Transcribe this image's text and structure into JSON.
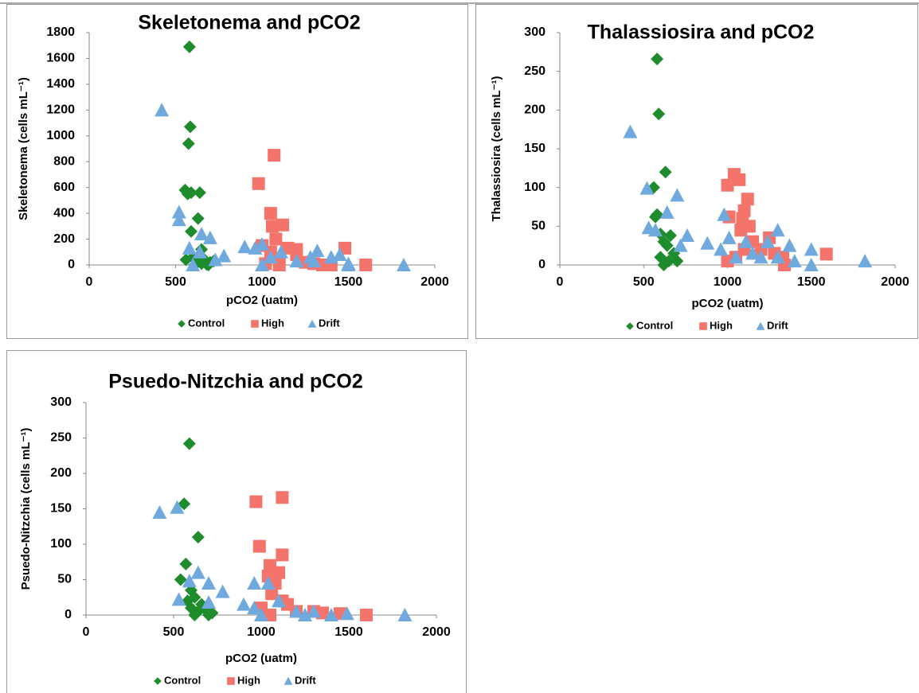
{
  "chart_data": [
    {
      "type": "scatter",
      "title": "Skeletonema and pCO2",
      "x_label": "pCO2 (uatm)",
      "y_label": "Skeletonema (cells mL⁻¹)",
      "xlim": [
        0,
        2000
      ],
      "xticks": [
        0,
        500,
        1000,
        1500,
        2000
      ],
      "ylim": [
        0,
        1800
      ],
      "yticks": [
        0,
        200,
        400,
        600,
        800,
        1000,
        1200,
        1400,
        1600,
        1800
      ],
      "legend": "bottom",
      "series": [
        {
          "name": "Control",
          "color": "#1e8c2c",
          "marker": "diamond",
          "x": [
            580,
            585,
            575,
            555,
            570,
            590,
            640,
            630,
            590,
            650,
            600,
            620,
            650,
            680,
            700,
            560,
            610,
            660,
            690,
            720
          ],
          "values": [
            1690,
            1070,
            940,
            580,
            550,
            560,
            560,
            360,
            260,
            120,
            60,
            30,
            10,
            5,
            20,
            40,
            0,
            50,
            0,
            30
          ]
        },
        {
          "name": "High",
          "color": "#f4736b",
          "marker": "square",
          "x": [
            980,
            1070,
            1050,
            1060,
            1120,
            1080,
            1000,
            1050,
            1100,
            1150,
            1200,
            1250,
            1300,
            1350,
            1480,
            1600,
            1020,
            1100,
            1200,
            1400
          ],
          "values": [
            630,
            850,
            400,
            300,
            310,
            200,
            150,
            100,
            50,
            130,
            120,
            20,
            10,
            0,
            130,
            0,
            10,
            0,
            80,
            0
          ]
        },
        {
          "name": "Drift",
          "color": "#6fa9dd",
          "marker": "triangle",
          "x": [
            420,
            520,
            520,
            580,
            650,
            700,
            780,
            900,
            960,
            1000,
            1050,
            1110,
            1200,
            1280,
            1300,
            1320,
            1400,
            1450,
            1500,
            1820,
            730,
            1000,
            1500,
            600,
            640
          ],
          "values": [
            1200,
            410,
            350,
            130,
            240,
            210,
            70,
            140,
            130,
            160,
            60,
            100,
            30,
            60,
            30,
            110,
            60,
            80,
            10,
            0,
            40,
            0,
            0,
            0,
            100
          ]
        }
      ]
    },
    {
      "type": "scatter",
      "title": "Thalassiosira and pCO2",
      "x_label": "pCO2 (uatm)",
      "y_label": "Thalassiosira (cells mL⁻¹)",
      "xlim": [
        0,
        2000
      ],
      "xticks": [
        0,
        500,
        1000,
        1500,
        2000
      ],
      "ylim": [
        0,
        300
      ],
      "yticks": [
        0,
        50,
        100,
        150,
        200,
        250,
        300
      ],
      "legend": "bottom",
      "series": [
        {
          "name": "Control",
          "color": "#1e8c2c",
          "marker": "diamond",
          "x": [
            580,
            590,
            630,
            560,
            570,
            580,
            600,
            620,
            640,
            600,
            650,
            700,
            680,
            620,
            660
          ],
          "values": [
            266,
            195,
            120,
            100,
            62,
            65,
            40,
            30,
            25,
            10,
            5,
            5,
            15,
            0,
            38
          ]
        },
        {
          "name": "High",
          "color": "#f4736b",
          "marker": "square",
          "x": [
            1000,
            1040,
            1070,
            1120,
            1100,
            1090,
            1010,
            1130,
            1080,
            1150,
            1200,
            1250,
            1280,
            1330,
            1340,
            1590,
            1050,
            1000,
            1100
          ],
          "values": [
            103,
            117,
            110,
            85,
            70,
            60,
            62,
            50,
            45,
            30,
            20,
            35,
            15,
            10,
            0,
            14,
            10,
            5,
            20
          ]
        },
        {
          "name": "Drift",
          "color": "#6fa9dd",
          "marker": "triangle",
          "x": [
            420,
            520,
            700,
            640,
            980,
            1010,
            1110,
            1300,
            1240,
            1370,
            1500,
            1820,
            530,
            570,
            760,
            880,
            960,
            1050,
            1150,
            1400,
            1500,
            720,
            1300,
            1200
          ],
          "values": [
            172,
            99,
            90,
            68,
            65,
            35,
            30,
            45,
            30,
            25,
            20,
            5,
            48,
            45,
            38,
            28,
            20,
            10,
            15,
            5,
            0,
            25,
            10,
            10
          ]
        }
      ]
    },
    {
      "type": "scatter",
      "title": "Psuedo-Nitzchia and pCO2",
      "x_label": "pCO2 (uatm)",
      "y_label": "Psuedo-Nitzchia (cells mL⁻¹)",
      "xlim": [
        0,
        2000
      ],
      "xticks": [
        0,
        500,
        1000,
        1500,
        2000
      ],
      "ylim": [
        0,
        300
      ],
      "yticks": [
        0,
        50,
        100,
        150,
        200,
        250,
        300
      ],
      "legend": "bottom",
      "series": [
        {
          "name": "Control",
          "color": "#1e8c2c",
          "marker": "diamond",
          "x": [
            590,
            560,
            640,
            570,
            540,
            600,
            620,
            580,
            600,
            640,
            660,
            700,
            620,
            680,
            720
          ],
          "values": [
            242,
            157,
            110,
            72,
            50,
            35,
            25,
            20,
            10,
            5,
            15,
            0,
            0,
            8,
            3
          ]
        },
        {
          "name": "High",
          "color": "#f4736b",
          "marker": "square",
          "x": [
            970,
            1120,
            990,
            1120,
            1050,
            1100,
            1040,
            1080,
            1060,
            1120,
            1150,
            1200,
            1300,
            1350,
            1450,
            1600,
            1050,
            1000
          ],
          "values": [
            160,
            166,
            97,
            85,
            70,
            60,
            55,
            45,
            30,
            20,
            15,
            5,
            5,
            3,
            2,
            0,
            0,
            10
          ]
        },
        {
          "name": "Drift",
          "color": "#6fa9dd",
          "marker": "triangle",
          "x": [
            420,
            520,
            640,
            700,
            780,
            590,
            530,
            700,
            900,
            960,
            1040,
            960,
            1100,
            1200,
            1300,
            1400,
            1490,
            1820,
            1000,
            1250
          ],
          "values": [
            145,
            152,
            60,
            45,
            33,
            48,
            22,
            18,
            15,
            45,
            45,
            10,
            20,
            5,
            5,
            0,
            2,
            0,
            0,
            0
          ]
        }
      ]
    }
  ]
}
